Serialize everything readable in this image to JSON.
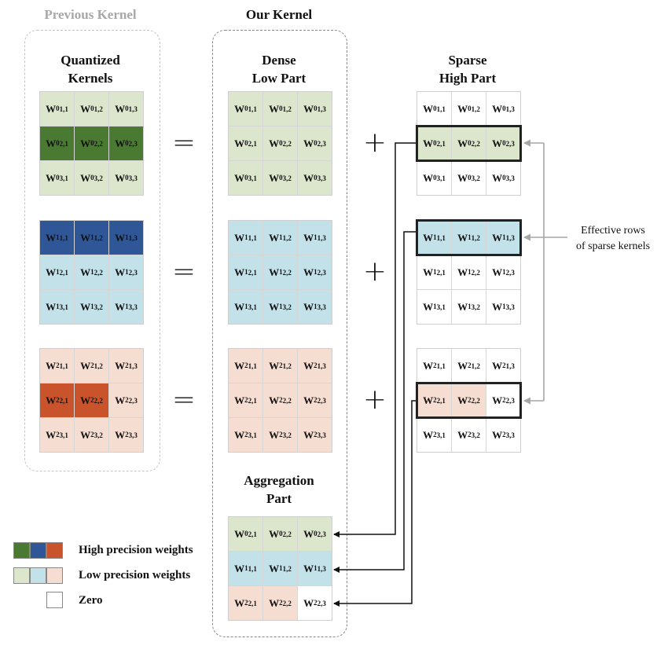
{
  "headers": {
    "previous": "Previous Kernel",
    "ours": "Our Kernel"
  },
  "section_titles": {
    "quantized": [
      "Quantized",
      "Kernels"
    ],
    "dense": [
      "Dense",
      "Low Part"
    ],
    "sparse": [
      "Sparse",
      "High Part"
    ],
    "aggregation": [
      "Aggregation",
      "Part"
    ]
  },
  "symbols": {
    "equals": "=",
    "plus": "+"
  },
  "annotation": [
    "Effective rows",
    "of sparse kernels"
  ],
  "colors": {
    "high_green": "#4a7a32",
    "high_blue": "#2f5797",
    "high_orange": "#c9532b",
    "low_green": "#dce6cc",
    "low_blue": "#c2e1e9",
    "low_orange": "#f6ddd2",
    "zero": "#ffffff"
  },
  "legend": [
    {
      "label": "High precision weights"
    },
    {
      "label": "Low precision weights"
    },
    {
      "label": "Zero"
    }
  ],
  "quantized_kernels": [
    {
      "superscript": "0",
      "fills": [
        [
          "g",
          "g",
          "g"
        ],
        [
          "G",
          "G",
          "G"
        ],
        [
          "g",
          "g",
          "g"
        ]
      ]
    },
    {
      "superscript": "1",
      "fills": [
        [
          "B",
          "B",
          "B"
        ],
        [
          "b",
          "b",
          "b"
        ],
        [
          "b",
          "b",
          "b"
        ]
      ]
    },
    {
      "superscript": "2",
      "fills": [
        [
          "o",
          "o",
          "o"
        ],
        [
          "O",
          "O",
          "o"
        ],
        [
          "o",
          "o",
          "o"
        ]
      ]
    }
  ],
  "dense_low_kernels": [
    {
      "superscript": "0",
      "fills": [
        [
          "g",
          "g",
          "g"
        ],
        [
          "g",
          "g",
          "g"
        ],
        [
          "g",
          "g",
          "g"
        ]
      ]
    },
    {
      "superscript": "1",
      "fills": [
        [
          "b",
          "b",
          "b"
        ],
        [
          "b",
          "b",
          "b"
        ],
        [
          "b",
          "b",
          "b"
        ]
      ]
    },
    {
      "superscript": "2",
      "fills": [
        [
          "o",
          "o",
          "o"
        ],
        [
          "o",
          "o",
          "o"
        ],
        [
          "o",
          "o",
          "o"
        ]
      ]
    }
  ],
  "sparse_high_kernels": [
    {
      "superscript": "0",
      "fills": [
        [
          "w",
          "w",
          "w"
        ],
        [
          "g",
          "g",
          "g"
        ],
        [
          "w",
          "w",
          "w"
        ]
      ],
      "effective_row": 2
    },
    {
      "superscript": "1",
      "fills": [
        [
          "b",
          "b",
          "b"
        ],
        [
          "w",
          "w",
          "w"
        ],
        [
          "w",
          "w",
          "w"
        ]
      ],
      "effective_row": 1
    },
    {
      "superscript": "2",
      "fills": [
        [
          "w",
          "w",
          "w"
        ],
        [
          "o",
          "o",
          "w"
        ],
        [
          "w",
          "w",
          "w"
        ]
      ],
      "effective_row": 2
    }
  ],
  "aggregation_rows": [
    {
      "superscript": "0",
      "row": "2",
      "fills": [
        "g",
        "g",
        "g"
      ]
    },
    {
      "superscript": "1",
      "row": "1",
      "fills": [
        "b",
        "b",
        "b"
      ]
    },
    {
      "superscript": "2",
      "row": "2",
      "fills": [
        "o",
        "o",
        "w"
      ]
    }
  ]
}
